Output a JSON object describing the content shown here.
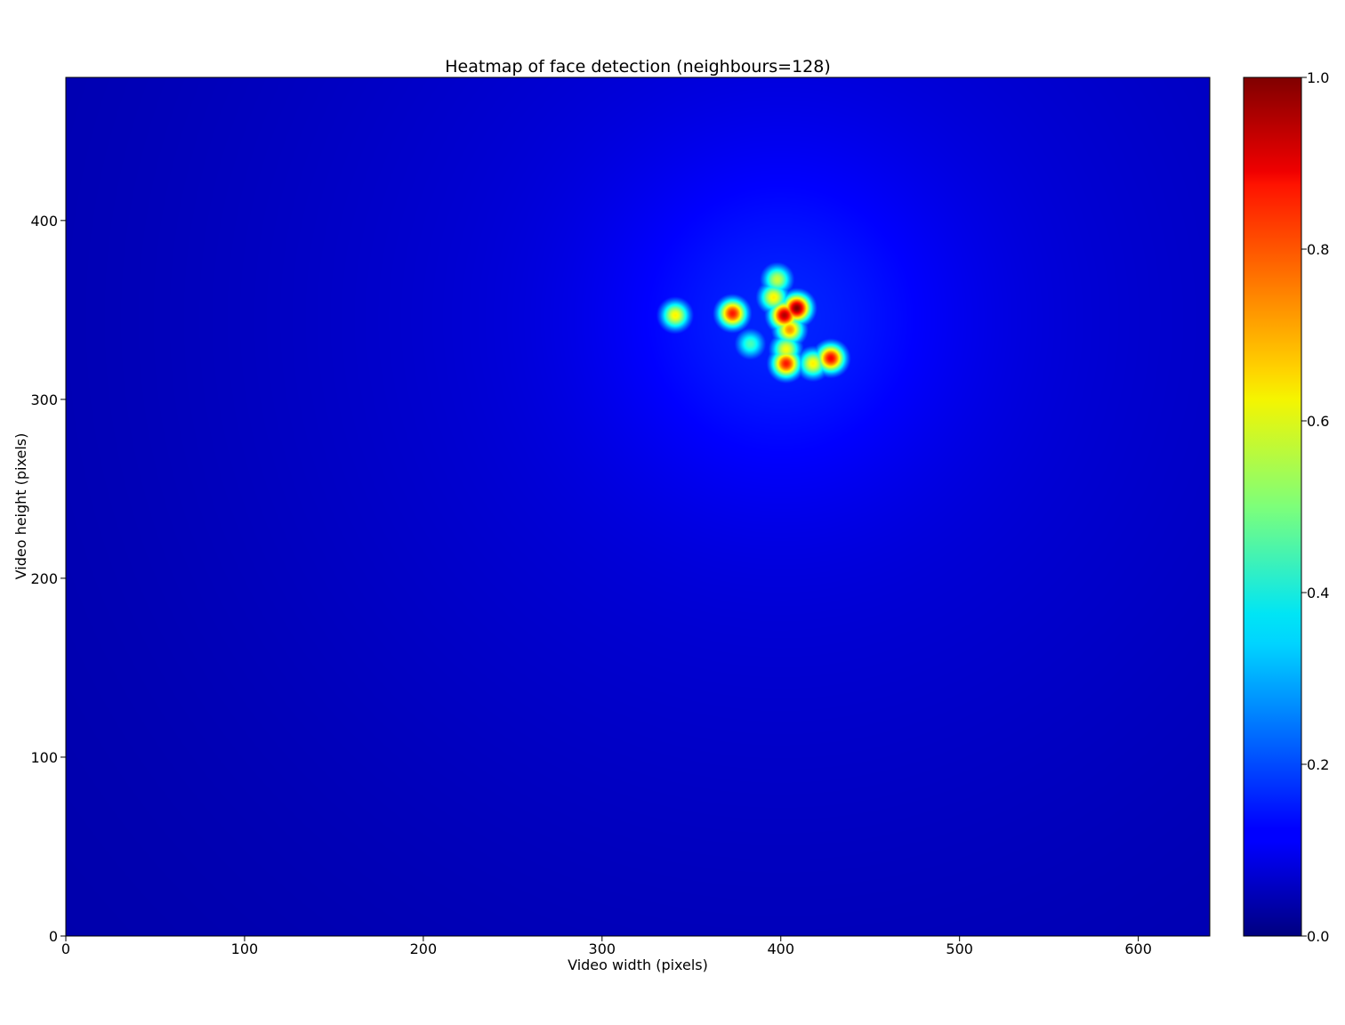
{
  "chart_data": {
    "type": "heatmap",
    "title": "Heatmap of face detection (neighbours=128)",
    "xlabel": "Video width (pixels)",
    "ylabel": "Video height (pixels)",
    "xlim": [
      0,
      640
    ],
    "ylim": [
      0,
      480
    ],
    "x_ticks": [
      0,
      100,
      200,
      300,
      400,
      500,
      600
    ],
    "y_ticks": [
      0,
      100,
      200,
      300,
      400
    ],
    "colormap": "jet",
    "colorbar": {
      "range": [
        0.0,
        1.0
      ],
      "ticks": [
        "0.0",
        "0.2",
        "0.4",
        "0.6",
        "0.8",
        "1.0"
      ]
    },
    "grid": false,
    "background_level": 0.04,
    "diffuse_center": {
      "x": 400,
      "y": 345,
      "peak": 0.16
    },
    "hotspots": [
      {
        "x": 341,
        "y": 347,
        "intensity": 0.62
      },
      {
        "x": 373,
        "y": 348,
        "intensity": 0.85
      },
      {
        "x": 383,
        "y": 331,
        "intensity": 0.42
      },
      {
        "x": 398,
        "y": 367,
        "intensity": 0.55
      },
      {
        "x": 396,
        "y": 357,
        "intensity": 0.62
      },
      {
        "x": 402,
        "y": 347,
        "intensity": 0.95
      },
      {
        "x": 409,
        "y": 351,
        "intensity": 1.0
      },
      {
        "x": 405,
        "y": 339,
        "intensity": 0.72
      },
      {
        "x": 403,
        "y": 320,
        "intensity": 0.85
      },
      {
        "x": 403,
        "y": 328,
        "intensity": 0.6
      },
      {
        "x": 418,
        "y": 320,
        "intensity": 0.62
      },
      {
        "x": 428,
        "y": 323,
        "intensity": 0.88
      }
    ]
  }
}
